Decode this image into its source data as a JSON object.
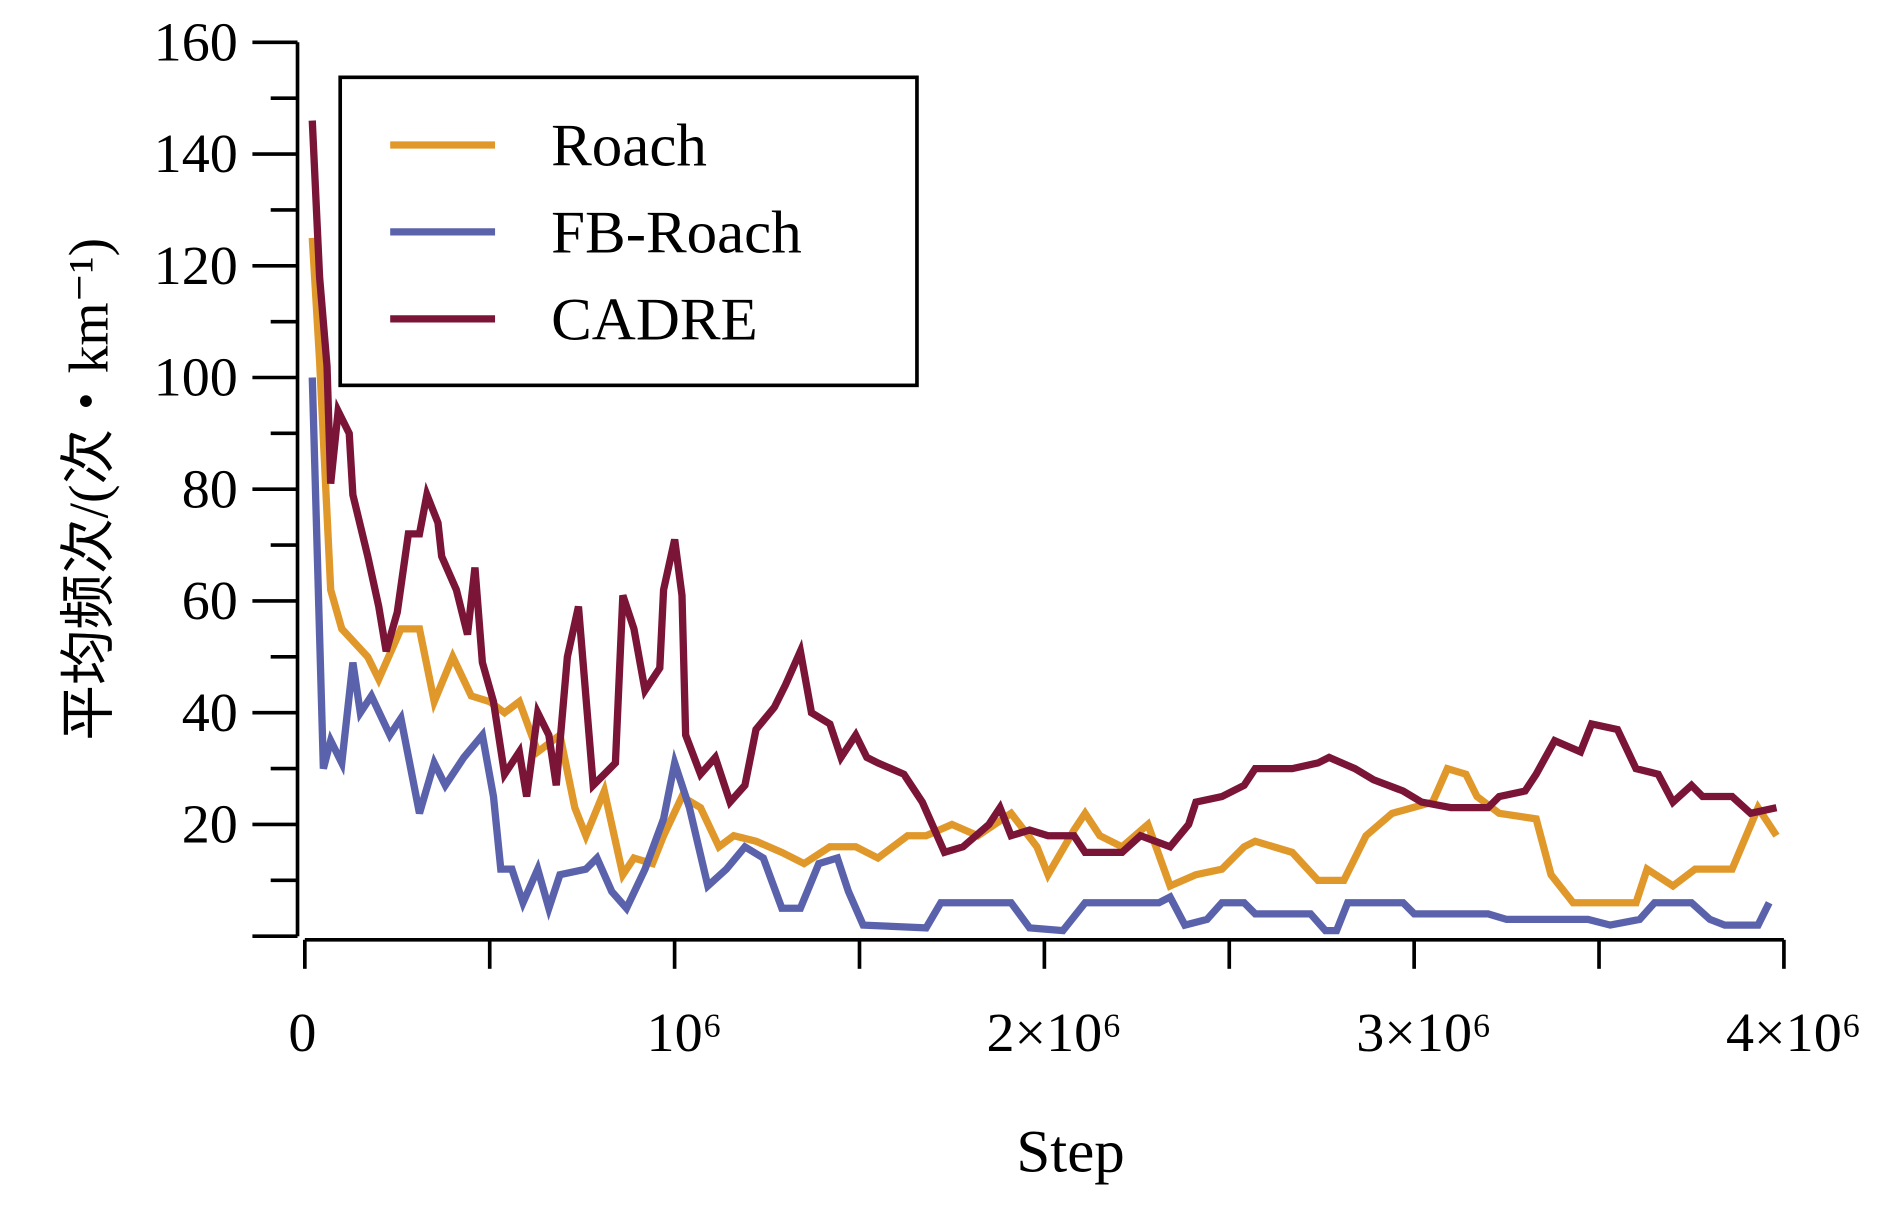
{
  "chart_data": {
    "type": "line",
    "title": "",
    "xlabel": "Step",
    "ylabel": "平均频次/(次・km⁻¹)",
    "x_unit_note": "x values in millions of steps",
    "xlim": [
      0,
      4
    ],
    "ylim": [
      0,
      160
    ],
    "xticks": [
      {
        "v": 0,
        "label": "0"
      },
      {
        "v": 1,
        "label": "10⁶"
      },
      {
        "v": 2,
        "label": "2×10⁶"
      },
      {
        "v": 3,
        "label": "3×10⁶"
      },
      {
        "v": 4,
        "label": "4×10⁶"
      }
    ],
    "yticks": [
      {
        "v": 20,
        "label": "20"
      },
      {
        "v": 40,
        "label": "40"
      },
      {
        "v": 60,
        "label": "60"
      },
      {
        "v": 80,
        "label": "80"
      },
      {
        "v": 100,
        "label": "100"
      },
      {
        "v": 120,
        "label": "120"
      },
      {
        "v": 140,
        "label": "140"
      },
      {
        "v": 160,
        "label": "160"
      }
    ],
    "grid": false,
    "legend_position": "top-left",
    "series": [
      {
        "name": "Roach",
        "color": "#E0982A",
        "points": [
          [
            0.02,
            125
          ],
          [
            0.04,
            103
          ],
          [
            0.07,
            62
          ],
          [
            0.1,
            55
          ],
          [
            0.17,
            50
          ],
          [
            0.2,
            46
          ],
          [
            0.26,
            55
          ],
          [
            0.31,
            55
          ],
          [
            0.35,
            42
          ],
          [
            0.4,
            50
          ],
          [
            0.45,
            43
          ],
          [
            0.5,
            42
          ],
          [
            0.54,
            40
          ],
          [
            0.58,
            42
          ],
          [
            0.63,
            33
          ],
          [
            0.69,
            36
          ],
          [
            0.73,
            23
          ],
          [
            0.76,
            18
          ],
          [
            0.81,
            26
          ],
          [
            0.86,
            11
          ],
          [
            0.89,
            14
          ],
          [
            0.94,
            13
          ],
          [
            0.97,
            18
          ],
          [
            1.02,
            25
          ],
          [
            1.07,
            23
          ],
          [
            1.12,
            16
          ],
          [
            1.16,
            18
          ],
          [
            1.22,
            17
          ],
          [
            1.29,
            15
          ],
          [
            1.35,
            13
          ],
          [
            1.42,
            16
          ],
          [
            1.49,
            16
          ],
          [
            1.55,
            14
          ],
          [
            1.63,
            18
          ],
          [
            1.68,
            18
          ],
          [
            1.75,
            20
          ],
          [
            1.82,
            18
          ],
          [
            1.91,
            22
          ],
          [
            1.98,
            16
          ],
          [
            2.01,
            11
          ],
          [
            2.08,
            19
          ],
          [
            2.11,
            22
          ],
          [
            2.15,
            18
          ],
          [
            2.21,
            16
          ],
          [
            2.28,
            20
          ],
          [
            2.34,
            9
          ],
          [
            2.41,
            11
          ],
          [
            2.48,
            12
          ],
          [
            2.54,
            16
          ],
          [
            2.57,
            17
          ],
          [
            2.67,
            15
          ],
          [
            2.74,
            10
          ],
          [
            2.81,
            10
          ],
          [
            2.87,
            18
          ],
          [
            2.94,
            22
          ],
          [
            3.05,
            24
          ],
          [
            3.09,
            30
          ],
          [
            3.14,
            29
          ],
          [
            3.17,
            25
          ],
          [
            3.23,
            22
          ],
          [
            3.33,
            21
          ],
          [
            3.37,
            11
          ],
          [
            3.43,
            6
          ],
          [
            3.6,
            6
          ],
          [
            3.63,
            12
          ],
          [
            3.7,
            9
          ],
          [
            3.76,
            12
          ],
          [
            3.86,
            12
          ],
          [
            3.93,
            23
          ],
          [
            3.98,
            18
          ]
        ]
      },
      {
        "name": "FB-Roach",
        "color": "#5B62AC",
        "points": [
          [
            0.02,
            100
          ],
          [
            0.05,
            30
          ],
          [
            0.07,
            35
          ],
          [
            0.1,
            31
          ],
          [
            0.13,
            49
          ],
          [
            0.15,
            40
          ],
          [
            0.18,
            43
          ],
          [
            0.23,
            36
          ],
          [
            0.26,
            39
          ],
          [
            0.31,
            22
          ],
          [
            0.35,
            31
          ],
          [
            0.38,
            27
          ],
          [
            0.43,
            32
          ],
          [
            0.48,
            36
          ],
          [
            0.51,
            25
          ],
          [
            0.53,
            12
          ],
          [
            0.56,
            12
          ],
          [
            0.59,
            6
          ],
          [
            0.63,
            12
          ],
          [
            0.66,
            5
          ],
          [
            0.69,
            11
          ],
          [
            0.76,
            12
          ],
          [
            0.79,
            14
          ],
          [
            0.83,
            8
          ],
          [
            0.87,
            5
          ],
          [
            0.92,
            12
          ],
          [
            0.97,
            21
          ],
          [
            1.0,
            31
          ],
          [
            1.04,
            23
          ],
          [
            1.09,
            9
          ],
          [
            1.14,
            12
          ],
          [
            1.19,
            16
          ],
          [
            1.24,
            14
          ],
          [
            1.29,
            5
          ],
          [
            1.34,
            5
          ],
          [
            1.39,
            13
          ],
          [
            1.44,
            14
          ],
          [
            1.47,
            8
          ],
          [
            1.51,
            2
          ],
          [
            1.68,
            1.5
          ],
          [
            1.72,
            6
          ],
          [
            1.91,
            6
          ],
          [
            1.96,
            1.5
          ],
          [
            2.05,
            1
          ],
          [
            2.11,
            6
          ],
          [
            2.31,
            6
          ],
          [
            2.34,
            7
          ],
          [
            2.38,
            2
          ],
          [
            2.44,
            3
          ],
          [
            2.48,
            6
          ],
          [
            2.54,
            6
          ],
          [
            2.57,
            4
          ],
          [
            2.72,
            4
          ],
          [
            2.76,
            1
          ],
          [
            2.79,
            1
          ],
          [
            2.82,
            6
          ],
          [
            2.97,
            6
          ],
          [
            3.0,
            4
          ],
          [
            3.2,
            4
          ],
          [
            3.25,
            3
          ],
          [
            3.37,
            3
          ],
          [
            3.47,
            3
          ],
          [
            3.53,
            2
          ],
          [
            3.61,
            3
          ],
          [
            3.65,
            6
          ],
          [
            3.75,
            6
          ],
          [
            3.8,
            3
          ],
          [
            3.84,
            2
          ],
          [
            3.93,
            2
          ],
          [
            3.96,
            6
          ]
        ]
      },
      {
        "name": "CADRE",
        "color": "#7A1538",
        "points": [
          [
            0.02,
            146
          ],
          [
            0.04,
            118
          ],
          [
            0.06,
            102
          ],
          [
            0.07,
            81
          ],
          [
            0.09,
            94
          ],
          [
            0.12,
            90
          ],
          [
            0.13,
            79
          ],
          [
            0.17,
            68
          ],
          [
            0.2,
            59
          ],
          [
            0.22,
            51
          ],
          [
            0.25,
            58
          ],
          [
            0.28,
            72
          ],
          [
            0.31,
            72
          ],
          [
            0.33,
            79
          ],
          [
            0.36,
            74
          ],
          [
            0.37,
            68
          ],
          [
            0.41,
            62
          ],
          [
            0.44,
            54
          ],
          [
            0.46,
            66
          ],
          [
            0.48,
            49
          ],
          [
            0.51,
            42
          ],
          [
            0.54,
            29
          ],
          [
            0.58,
            33
          ],
          [
            0.6,
            25
          ],
          [
            0.63,
            40
          ],
          [
            0.66,
            36
          ],
          [
            0.68,
            27
          ],
          [
            0.71,
            50
          ],
          [
            0.74,
            59
          ],
          [
            0.78,
            27
          ],
          [
            0.81,
            29
          ],
          [
            0.84,
            31
          ],
          [
            0.86,
            61
          ],
          [
            0.89,
            55
          ],
          [
            0.92,
            44
          ],
          [
            0.96,
            48
          ],
          [
            0.97,
            62
          ],
          [
            1.0,
            71
          ],
          [
            1.02,
            61
          ],
          [
            1.03,
            36
          ],
          [
            1.07,
            29
          ],
          [
            1.11,
            32
          ],
          [
            1.15,
            24
          ],
          [
            1.19,
            27
          ],
          [
            1.22,
            37
          ],
          [
            1.27,
            41
          ],
          [
            1.3,
            45
          ],
          [
            1.34,
            51
          ],
          [
            1.37,
            40
          ],
          [
            1.42,
            38
          ],
          [
            1.45,
            32
          ],
          [
            1.49,
            36
          ],
          [
            1.52,
            32
          ],
          [
            1.55,
            31
          ],
          [
            1.62,
            29
          ],
          [
            1.67,
            24
          ],
          [
            1.73,
            15
          ],
          [
            1.78,
            16
          ],
          [
            1.85,
            20
          ],
          [
            1.88,
            23
          ],
          [
            1.91,
            18
          ],
          [
            1.96,
            19
          ],
          [
            2.01,
            18
          ],
          [
            2.08,
            18
          ],
          [
            2.11,
            15
          ],
          [
            2.21,
            15
          ],
          [
            2.26,
            18
          ],
          [
            2.34,
            16
          ],
          [
            2.39,
            20
          ],
          [
            2.41,
            24
          ],
          [
            2.48,
            25
          ],
          [
            2.54,
            27
          ],
          [
            2.57,
            30
          ],
          [
            2.67,
            30
          ],
          [
            2.74,
            31
          ],
          [
            2.77,
            32
          ],
          [
            2.84,
            30
          ],
          [
            2.89,
            28
          ],
          [
            2.97,
            26
          ],
          [
            3.02,
            24
          ],
          [
            3.1,
            23
          ],
          [
            3.2,
            23
          ],
          [
            3.23,
            25
          ],
          [
            3.3,
            26
          ],
          [
            3.33,
            29
          ],
          [
            3.38,
            35
          ],
          [
            3.45,
            33
          ],
          [
            3.48,
            38
          ],
          [
            3.55,
            37
          ],
          [
            3.6,
            30
          ],
          [
            3.66,
            29
          ],
          [
            3.7,
            24
          ],
          [
            3.75,
            27
          ],
          [
            3.78,
            25
          ],
          [
            3.86,
            25
          ],
          [
            3.91,
            22
          ],
          [
            3.98,
            23
          ]
        ]
      }
    ]
  }
}
